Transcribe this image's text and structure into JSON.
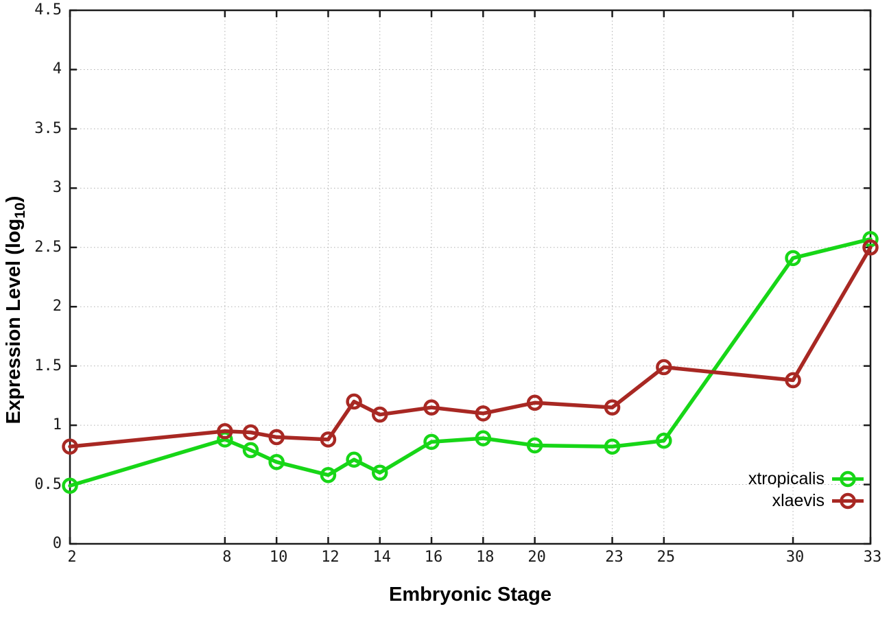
{
  "chart_data": {
    "type": "line",
    "title": "",
    "xlabel": "Embryonic Stage",
    "ylabel": {
      "prefix": "Expression Level (log",
      "sub": "10",
      "suffix": ")"
    },
    "x": [
      2,
      8,
      9,
      10,
      12,
      13,
      14,
      16,
      18,
      20,
      23,
      25,
      30,
      33
    ],
    "series": [
      {
        "name": "xtropicalis",
        "color": "#17d617",
        "values": [
          0.49,
          0.88,
          0.79,
          0.69,
          0.58,
          0.71,
          0.6,
          0.86,
          0.89,
          0.83,
          0.82,
          0.87,
          2.41,
          2.57
        ]
      },
      {
        "name": "xlaevis",
        "color": "#a82823",
        "values": [
          0.82,
          0.95,
          0.94,
          0.9,
          0.88,
          1.2,
          1.09,
          1.15,
          1.1,
          1.19,
          1.15,
          1.49,
          1.38,
          2.5
        ]
      }
    ],
    "xlim": [
      2,
      33
    ],
    "ylim": [
      0,
      4.5
    ],
    "x_ticks": [
      2,
      8,
      10,
      12,
      14,
      16,
      18,
      20,
      23,
      25,
      30,
      33
    ],
    "y_ticks": [
      0,
      0.5,
      1,
      1.5,
      2,
      2.5,
      3,
      3.5,
      4,
      4.5
    ],
    "grid": true,
    "legend_position": "bottom-right",
    "marker": "open-circle",
    "colors": {
      "grid": "#b0b0b0",
      "axis": "#1c1c1c",
      "background": "#ffffff"
    }
  }
}
